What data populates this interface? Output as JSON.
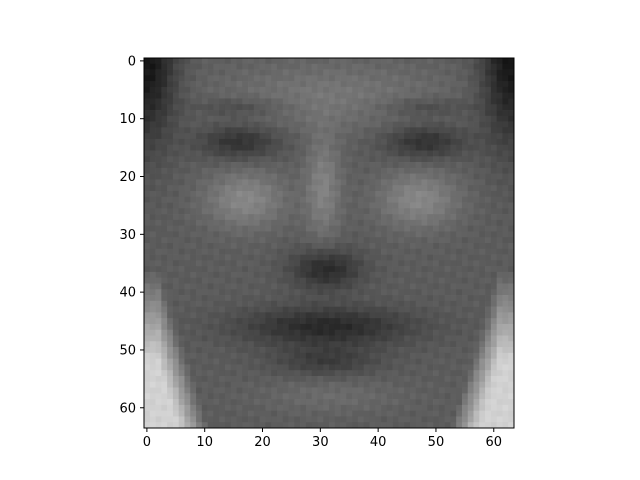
{
  "chart_data": {
    "type": "heatmap",
    "title": "",
    "xlabel": "",
    "ylabel": "",
    "colormap": "gray",
    "image_shape": [
      64,
      64
    ],
    "xlim": [
      -0.5,
      63.5
    ],
    "ylim": [
      63.5,
      -0.5
    ],
    "x_ticks": [
      0,
      10,
      20,
      30,
      40,
      50,
      60
    ],
    "y_ticks": [
      0,
      10,
      20,
      30,
      40,
      50,
      60
    ],
    "x_tick_labels": [
      "0",
      "10",
      "20",
      "30",
      "40",
      "50",
      "60"
    ],
    "y_tick_labels": [
      "0",
      "10",
      "20",
      "30",
      "40",
      "50",
      "60"
    ],
    "colors": {
      "frame": "#000000",
      "text": "#000000",
      "background": "#ffffff"
    }
  }
}
